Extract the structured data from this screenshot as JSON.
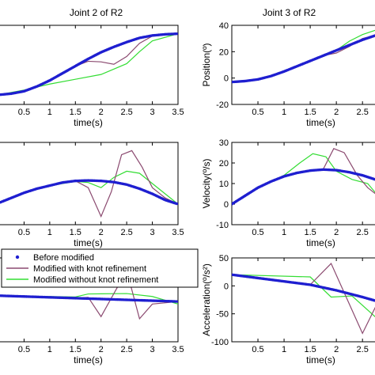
{
  "chart_data": [
    {
      "type": "line",
      "title": "Joint 2 of R2",
      "xlabel": "time(s)",
      "ylabel": "",
      "xlim": [
        0,
        3.5
      ],
      "ylim": [
        -24,
        42
      ],
      "xticks": [
        "0.5",
        "1",
        "1.5",
        "2",
        "2.5",
        "3",
        "3.5"
      ],
      "xtick_values": [
        0.5,
        1,
        1.5,
        2,
        2.5,
        3,
        3.5
      ],
      "yticks": [],
      "series": [
        {
          "name": "Before modified",
          "color": "#1f1fd0",
          "style": "dots",
          "x": [
            0,
            0.25,
            0.5,
            0.75,
            1,
            1.25,
            1.5,
            1.75,
            2,
            2.25,
            2.5,
            2.75,
            3,
            3.25,
            3.5
          ],
          "y": [
            -16,
            -15,
            -13,
            -9,
            -4,
            2,
            8,
            14,
            19.5,
            24,
            28,
            31.5,
            33.5,
            34.5,
            35
          ]
        },
        {
          "name": "Modified with knot refinement",
          "color": "#8b4a70",
          "style": "line",
          "x": [
            0,
            0.5,
            1,
            1.5,
            1.75,
            2,
            2.25,
            2.5,
            2.75,
            3,
            3.5
          ],
          "y": [
            -16,
            -13,
            -4,
            8,
            12,
            11.5,
            9.5,
            16,
            27,
            33,
            35
          ]
        },
        {
          "name": "Modified without knot refinement",
          "color": "#33dd33",
          "style": "line",
          "x": [
            0,
            0.5,
            1,
            1.5,
            2,
            2.5,
            2.75,
            3,
            3.5
          ],
          "y": [
            -16,
            -12,
            -7,
            -3,
            1,
            10,
            20,
            29,
            35
          ]
        }
      ]
    },
    {
      "type": "line",
      "title": "Joint 3 of R2",
      "xlabel": "time(s)",
      "ylabel": "Position(º)",
      "xlim": [
        0,
        2.8
      ],
      "ylim": [
        -20,
        40
      ],
      "xticks": [
        "0.5",
        "1",
        "1.5",
        "2",
        "2.5"
      ],
      "xtick_values": [
        0.5,
        1,
        1.5,
        2,
        2.5
      ],
      "yticks": [
        "-20",
        "0",
        "20",
        "40"
      ],
      "ytick_values": [
        -20,
        0,
        20,
        40
      ],
      "series": [
        {
          "name": "Before modified",
          "color": "#1f1fd0",
          "style": "dots",
          "x": [
            0,
            0.25,
            0.5,
            0.75,
            1,
            1.25,
            1.5,
            1.75,
            2,
            2.25,
            2.5,
            2.8
          ],
          "y": [
            -3,
            -2.3,
            -1,
            1.5,
            5,
            9,
            13,
            17,
            21,
            25,
            29,
            33
          ]
        },
        {
          "name": "Modified with knot refinement",
          "color": "#8b4a70",
          "style": "line",
          "x": [
            0,
            0.5,
            1,
            1.5,
            1.75,
            2,
            2.25,
            2.5,
            2.8
          ],
          "y": [
            -3,
            -1,
            5,
            13,
            17,
            19,
            24,
            30,
            33
          ]
        },
        {
          "name": "Modified without knot refinement",
          "color": "#33dd33",
          "style": "line",
          "x": [
            0,
            0.5,
            1,
            1.5,
            1.75,
            2,
            2.25,
            2.5,
            2.8
          ],
          "y": [
            -3,
            -1,
            5,
            13,
            17,
            21,
            28,
            33,
            37
          ]
        }
      ]
    },
    {
      "type": "line",
      "title": "",
      "xlabel": "time(s)",
      "ylabel": "",
      "xlim": [
        0,
        3.5
      ],
      "ylim": [
        -10,
        30
      ],
      "xticks": [
        "0.5",
        "1",
        "1.5",
        "2",
        "2.5",
        "3",
        "3.5"
      ],
      "xtick_values": [
        0.5,
        1,
        1.5,
        2,
        2.5,
        3,
        3.5
      ],
      "yticks": [],
      "series": [
        {
          "name": "Before modified",
          "color": "#1f1fd0",
          "style": "dots",
          "x": [
            0,
            0.25,
            0.5,
            0.75,
            1,
            1.25,
            1.5,
            1.75,
            2,
            2.25,
            2.5,
            2.75,
            3,
            3.25,
            3.5
          ],
          "y": [
            0.5,
            3,
            5.5,
            7.5,
            9,
            10.5,
            11.3,
            11.5,
            11.3,
            10.7,
            9.5,
            7.5,
            5,
            2,
            0
          ]
        },
        {
          "name": "Modified with knot refinement",
          "color": "#8b4a70",
          "style": "line",
          "x": [
            0,
            0.5,
            1,
            1.5,
            1.75,
            2,
            2.2,
            2.4,
            2.6,
            2.8,
            3,
            3.25,
            3.5
          ],
          "y": [
            0.5,
            5.5,
            9,
            11.3,
            8,
            -6,
            6,
            24,
            26,
            18,
            8,
            3,
            0
          ]
        },
        {
          "name": "Modified without knot refinement",
          "color": "#33dd33",
          "style": "line",
          "x": [
            0,
            0.5,
            1,
            1.5,
            1.75,
            2,
            2.25,
            2.5,
            2.75,
            3,
            3.25,
            3.5
          ],
          "y": [
            0.5,
            5.5,
            9,
            11,
            10.5,
            8,
            13,
            16,
            15,
            10,
            5,
            0
          ]
        }
      ]
    },
    {
      "type": "line",
      "title": "",
      "xlabel": "time(s)",
      "ylabel": "Velocity(º/s)",
      "xlim": [
        0,
        2.8
      ],
      "ylim": [
        -10,
        30
      ],
      "xticks": [
        "0.5",
        "1",
        "1.5",
        "2",
        "2.5"
      ],
      "xtick_values": [
        0.5,
        1,
        1.5,
        2,
        2.5
      ],
      "yticks": [
        "-10",
        "0",
        "10",
        "20",
        "30"
      ],
      "ytick_values": [
        -10,
        0,
        10,
        20,
        30
      ],
      "series": [
        {
          "name": "Before modified",
          "color": "#1f1fd0",
          "style": "dots",
          "x": [
            0,
            0.25,
            0.5,
            0.75,
            1,
            1.25,
            1.5,
            1.75,
            2,
            2.25,
            2.5,
            2.8
          ],
          "y": [
            0,
            4,
            8,
            11,
            13.5,
            15.2,
            16.3,
            16.8,
            16.5,
            15.5,
            14,
            11.5
          ]
        },
        {
          "name": "Modified with knot refinement",
          "color": "#8b4a70",
          "style": "line",
          "x": [
            0,
            0.5,
            1,
            1.5,
            1.75,
            1.95,
            2.15,
            2.4,
            2.6,
            2.8
          ],
          "y": [
            0,
            8,
            13.5,
            16.3,
            17,
            27,
            25,
            14,
            8,
            4
          ]
        },
        {
          "name": "Modified without knot refinement",
          "color": "#33dd33",
          "style": "line",
          "x": [
            0,
            0.5,
            1,
            1.3,
            1.55,
            1.8,
            2.0,
            2.3,
            2.6,
            2.8
          ],
          "y": [
            0,
            8,
            14,
            20,
            24.5,
            23,
            16,
            12,
            10,
            4
          ]
        }
      ]
    },
    {
      "type": "line",
      "title": "",
      "xlabel": "time(s)",
      "ylabel": "",
      "xlim": [
        0,
        3.5
      ],
      "ylim": [
        -110,
        90
      ],
      "xticks": [
        "0.5",
        "1",
        "1.5",
        "2",
        "2.5",
        "3",
        "3.5"
      ],
      "xtick_values": [
        0.5,
        1,
        1.5,
        2,
        2.5,
        3,
        3.5
      ],
      "yticks": [],
      "series": [
        {
          "name": "Before modified",
          "color": "#1f1fd0",
          "style": "dots",
          "x": [
            0,
            0.5,
            1,
            1.5,
            2,
            2.5,
            3,
            3.5
          ],
          "y": [
            0,
            -2,
            -4,
            -6,
            -8,
            -10,
            -12,
            -14
          ]
        },
        {
          "name": "Modified with knot refinement",
          "color": "#8b4a70",
          "style": "line",
          "x": [
            0,
            1.5,
            1.75,
            2.0,
            2.5,
            2.75,
            3.0,
            3.5
          ],
          "y": [
            0,
            -6,
            -4,
            -50,
            60,
            -55,
            -20,
            -14
          ]
        },
        {
          "name": "Modified without knot refinement",
          "color": "#33dd33",
          "style": "line",
          "x": [
            0,
            1.5,
            1.75,
            2.5,
            3.0,
            3.5
          ],
          "y": [
            0,
            -3,
            4,
            5,
            -2,
            -20
          ]
        }
      ]
    },
    {
      "type": "line",
      "title": "",
      "xlabel": "time(s)",
      "ylabel": "Acceleration(º/s²)",
      "xlim": [
        0,
        2.8
      ],
      "ylim": [
        -100,
        50
      ],
      "xticks": [
        "0.5",
        "1",
        "1.5",
        "2",
        "2.5"
      ],
      "xtick_values": [
        0.5,
        1,
        1.5,
        2,
        2.5
      ],
      "yticks": [
        "-100",
        "-50",
        "0",
        "50"
      ],
      "ytick_values": [
        -100,
        -50,
        0,
        50
      ],
      "series": [
        {
          "name": "Before modified",
          "color": "#1f1fd0",
          "style": "dots",
          "x": [
            0,
            0.5,
            1,
            1.5,
            2,
            2.5,
            2.8
          ],
          "y": [
            20,
            14,
            8,
            2,
            -8,
            -20,
            -28
          ]
        },
        {
          "name": "Modified with knot refinement",
          "color": "#8b4a70",
          "style": "line",
          "x": [
            0,
            1.5,
            1.9,
            2.5,
            2.8
          ],
          "y": [
            20,
            2,
            40,
            -85,
            -28
          ]
        },
        {
          "name": "Modified without knot refinement",
          "color": "#33dd33",
          "style": "line",
          "x": [
            0,
            1.5,
            1.9,
            2.3,
            2.8
          ],
          "y": [
            20,
            16,
            -20,
            -18,
            -60
          ]
        }
      ]
    }
  ],
  "legend": {
    "entries": [
      {
        "label": "Before modified",
        "color": "#1f1fd0",
        "marker": "dot"
      },
      {
        "label": "Modified with knot refinement",
        "color": "#8b4a70",
        "marker": "line"
      },
      {
        "label": "Modified without knot refinement",
        "color": "#33dd33",
        "marker": "line"
      }
    ]
  }
}
